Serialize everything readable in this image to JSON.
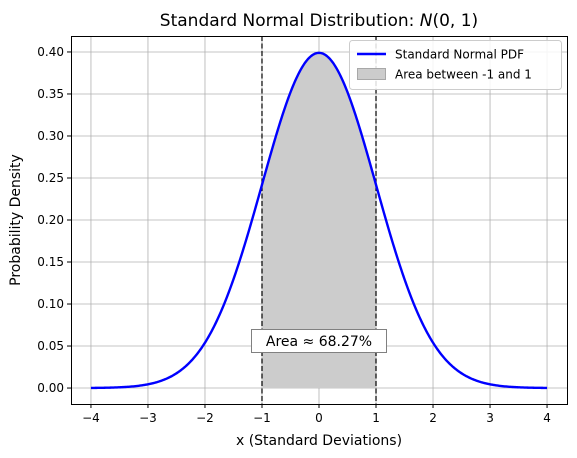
{
  "chart_data": {
    "type": "line",
    "title_main": "Standard Normal Distribution: ",
    "title_math_N": "N",
    "title_math_args": "(0, 1)",
    "xlabel": "x (Standard Deviations)",
    "ylabel": "Probability Density",
    "xlim": [
      -4.35,
      4.35
    ],
    "ylim": [
      -0.019,
      0.419
    ],
    "xticks": [
      -4,
      -3,
      -2,
      -1,
      0,
      1,
      2,
      3,
      4
    ],
    "xtick_labels": [
      "−4",
      "−3",
      "−2",
      "−1",
      "0",
      "1",
      "2",
      "3",
      "4"
    ],
    "yticks": [
      0.0,
      0.05,
      0.1,
      0.15,
      0.2,
      0.25,
      0.3,
      0.35,
      0.4
    ],
    "ytick_labels": [
      "0.00",
      "0.05",
      "0.10",
      "0.15",
      "0.20",
      "0.25",
      "0.30",
      "0.35",
      "0.40"
    ],
    "grid": true,
    "legend_position": "top-right",
    "series": [
      {
        "name": "Standard Normal PDF",
        "color": "#0000ff",
        "x": [
          -4.0,
          -3.5,
          -3.0,
          -2.5,
          -2.0,
          -1.5,
          -1.0,
          -0.5,
          0.0,
          0.5,
          1.0,
          1.5,
          2.0,
          2.5,
          3.0,
          3.5,
          4.0
        ],
        "y": [
          0.0001,
          0.0009,
          0.0044,
          0.0175,
          0.054,
          0.1295,
          0.242,
          0.3521,
          0.3989,
          0.3521,
          0.242,
          0.1295,
          0.054,
          0.0175,
          0.0044,
          0.0009,
          0.0001
        ]
      }
    ],
    "shaded_area": {
      "name": "Area between -1 and 1",
      "from": -1,
      "to": 1,
      "color": "#cccccc",
      "edge_color": "#a8a8a8"
    },
    "vertical_lines": [
      -1,
      1
    ],
    "annotation": {
      "text": "Area ≈ 68.27%",
      "x": 0,
      "y": 0.05
    }
  }
}
